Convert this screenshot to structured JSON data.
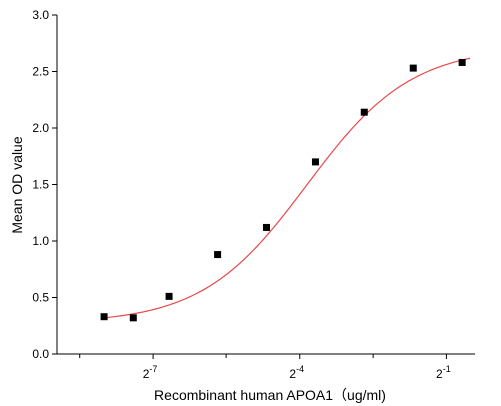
{
  "chart_data": {
    "type": "scatter",
    "title": "",
    "xlabel": "Recombinant human  APOA1（ug/ml)",
    "ylabel": "Mean OD value",
    "x_scale": "log2",
    "xlim": [
      0.002,
      0.75
    ],
    "ylim": [
      0,
      3.0
    ],
    "y_ticks": [
      "0.0",
      "0.5",
      "1.0",
      "1.5",
      "2.0",
      "2.5",
      "3.0"
    ],
    "x_ticks": [
      {
        "base": "2",
        "exp": "-7",
        "value": 0.0078125
      },
      {
        "base": "2",
        "exp": "-4",
        "value": 0.0625
      },
      {
        "base": "2",
        "exp": "-1",
        "value": 0.5
      }
    ],
    "x_minor_ticks": [
      0.00276,
      0.022,
      0.177
    ],
    "grid": false,
    "legend": "none",
    "marker_color": "#000000",
    "fit_color": "#e8484c",
    "series": [
      {
        "x": [
          0.0039,
          0.0059,
          0.0098,
          0.0195,
          0.039,
          0.0781,
          0.156,
          0.3125,
          0.625
        ],
        "y": [
          0.33,
          0.32,
          0.51,
          0.88,
          1.12,
          1.7,
          2.14,
          2.53,
          2.58
        ]
      }
    ],
    "fit": {
      "model": "4PL",
      "bottom": 0.27,
      "top": 2.72,
      "ec50": 0.069,
      "hill": 1.35,
      "x_range": [
        0.0039,
        0.7
      ]
    }
  }
}
